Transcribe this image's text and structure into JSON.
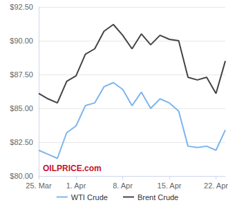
{
  "chart_data": {
    "type": "line",
    "categories": [
      "25. Mar",
      null,
      null,
      null,
      "1. Apr",
      null,
      null,
      null,
      null,
      "8. Apr",
      null,
      null,
      null,
      null,
      "15. Apr",
      null,
      null,
      null,
      null,
      "22. Apr",
      null
    ],
    "series": [
      {
        "name": "WTI Crude",
        "color": "#7cb5ec",
        "values": [
          81.9,
          81.6,
          81.3,
          83.2,
          83.7,
          85.2,
          85.4,
          86.6,
          86.9,
          86.4,
          85.2,
          86.2,
          85.0,
          85.7,
          85.4,
          84.8,
          82.2,
          82.1,
          82.2,
          81.9,
          83.4
        ]
      },
      {
        "name": "Brent Crude",
        "color": "#434348",
        "values": [
          86.1,
          85.7,
          85.4,
          87.0,
          87.4,
          89.0,
          89.4,
          90.7,
          91.2,
          90.4,
          89.4,
          90.5,
          89.7,
          90.4,
          90.1,
          90.0,
          87.3,
          87.1,
          87.3,
          86.1,
          88.5
        ]
      }
    ],
    "ylim": [
      80,
      92.5
    ],
    "yticks": [
      {
        "value": 80,
        "label": "$80.00"
      },
      {
        "value": 82.5,
        "label": "$82.50"
      },
      {
        "value": 85,
        "label": "$85.00"
      },
      {
        "value": 87.5,
        "label": "$87.50"
      },
      {
        "value": 90,
        "label": "$90.00"
      },
      {
        "value": 92.5,
        "label": "$92.50"
      }
    ],
    "grid": true,
    "legend": "bottom",
    "annotations": [
      "OILPRICE.com"
    ]
  }
}
